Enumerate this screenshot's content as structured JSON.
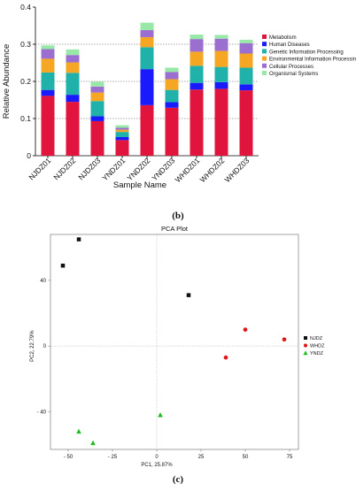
{
  "panel_labels": {
    "b": "(b)",
    "c": "(c)"
  },
  "chart_data": [
    {
      "type": "bar",
      "stacked": true,
      "title": "",
      "xlabel": "Sample Name",
      "ylabel": "Relative Abundance",
      "ylim": [
        0,
        0.4
      ],
      "yticks": [
        "0",
        "0.1",
        "0.2",
        "0.3",
        "0.4"
      ],
      "grid": "dashed horizontal at 0.1, 0.2, 0.3",
      "legend_position": "right",
      "categories": [
        "NJDZ01",
        "NJDZ02",
        "NJDZ03",
        "YNDZ01",
        "YNDZ02",
        "YNDZ03",
        "WHDZ01",
        "WHDZ02",
        "WHDZ03"
      ],
      "series": [
        {
          "name": "Metabolism",
          "color": "#e0143c",
          "values": [
            0.161,
            0.145,
            0.093,
            0.042,
            0.136,
            0.129,
            0.178,
            0.18,
            0.176
          ]
        },
        {
          "name": "Human Diseases",
          "color": "#1a1aff",
          "values": [
            0.016,
            0.019,
            0.013,
            0.008,
            0.097,
            0.015,
            0.018,
            0.018,
            0.016
          ]
        },
        {
          "name": "Genetic Information Processing",
          "color": "#20b2aa",
          "values": [
            0.047,
            0.059,
            0.041,
            0.014,
            0.059,
            0.033,
            0.046,
            0.041,
            0.045
          ]
        },
        {
          "name": "Environmental Information Processing",
          "color": "#f5a623",
          "values": [
            0.037,
            0.028,
            0.023,
            0.006,
            0.027,
            0.029,
            0.038,
            0.043,
            0.038
          ]
        },
        {
          "name": "Cellular Processes",
          "color": "#9b6fd0",
          "values": [
            0.026,
            0.02,
            0.016,
            0.005,
            0.019,
            0.019,
            0.034,
            0.033,
            0.028
          ]
        },
        {
          "name": "Organismal Systems",
          "color": "#98e8a8",
          "values": [
            0.01,
            0.015,
            0.013,
            0.007,
            0.02,
            0.012,
            0.012,
            0.01,
            0.009
          ]
        }
      ]
    },
    {
      "type": "scatter",
      "title": "PCA Plot",
      "xlabel": "PC1, 25.87%",
      "ylabel": "PC2, 22.79%",
      "xlim": [
        -60,
        80
      ],
      "ylim": [
        -63,
        68
      ],
      "xticks": [
        {
          "value": -50,
          "label": "- 50"
        },
        {
          "value": -25,
          "label": "- 25"
        },
        {
          "value": 0,
          "label": "0"
        },
        {
          "value": 25,
          "label": "25"
        },
        {
          "value": 50,
          "label": "50"
        },
        {
          "value": 75,
          "label": "75"
        }
      ],
      "yticks": [
        {
          "value": 40,
          "label": "40"
        },
        {
          "value": 0,
          "label": "0"
        },
        {
          "value": -40,
          "label": "- 40"
        }
      ],
      "zero_lines": true,
      "legend_position": "right",
      "series": [
        {
          "name": "NJDZ",
          "marker": "square",
          "color": "#111111",
          "points": [
            [
              -53,
              49
            ],
            [
              -44,
              65
            ],
            [
              18,
              31
            ]
          ]
        },
        {
          "name": "WHDZ",
          "marker": "circle",
          "color": "#e01818",
          "points": [
            [
              50,
              10
            ],
            [
              72,
              4
            ],
            [
              39,
              -7
            ]
          ]
        },
        {
          "name": "YNDZ",
          "marker": "triangle",
          "color": "#22bb22",
          "points": [
            [
              2,
              -42
            ],
            [
              -44,
              -52
            ],
            [
              -36,
              -59
            ]
          ]
        }
      ]
    }
  ]
}
